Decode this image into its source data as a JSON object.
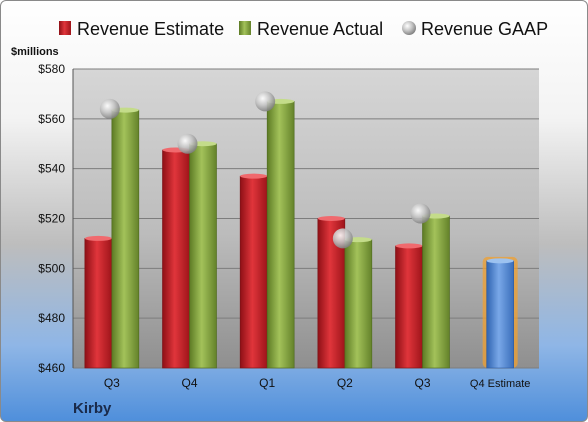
{
  "chart_data": {
    "type": "bar",
    "categories": [
      "Q3",
      "Q4",
      "Q1",
      "Q2",
      "Q3",
      "Q4 Estimate"
    ],
    "ylabel": "$millions",
    "ylim": [
      460,
      580
    ],
    "yticks": [
      "$460",
      "$480",
      "$500",
      "$520",
      "$540",
      "$560",
      "$580"
    ],
    "ytick_values": [
      460,
      480,
      500,
      520,
      540,
      560,
      580
    ],
    "grid": true,
    "legend_position": "top",
    "series": [
      {
        "name": "Revenue Estimate",
        "kind": "bar",
        "color": "#cc1f26",
        "values": [
          512,
          547.5,
          537,
          520,
          509,
          null
        ]
      },
      {
        "name": "Revenue Actual",
        "kind": "bar",
        "color": "#8aaa3c",
        "values": [
          563.5,
          550,
          567,
          511.5,
          521,
          null
        ]
      },
      {
        "name": "Revenue GAAP",
        "kind": "marker",
        "color": "#b9b9b9",
        "values": [
          564,
          550,
          567,
          512,
          522,
          null
        ]
      }
    ],
    "estimate_bar": {
      "category": "Q4 Estimate",
      "value": 503,
      "color": "#4f86d6",
      "glow": "#f0a030"
    }
  },
  "footer": {
    "company": "Kirby"
  }
}
